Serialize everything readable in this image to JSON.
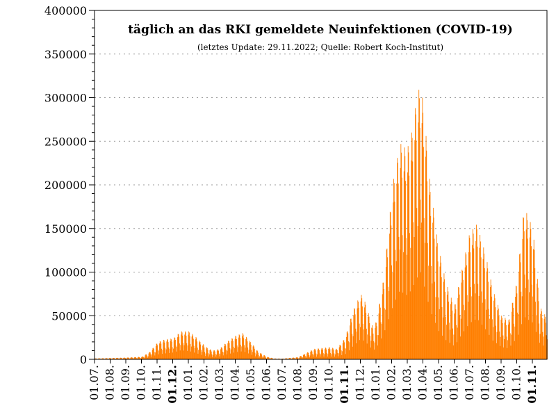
{
  "chart_data": {
    "type": "bar",
    "title": "täglich an das RKI gemeldete Neuinfektionen (COVID-19)",
    "subtitle": "(letztes Update: 29.11.2022; Quelle: Robert Koch-Institut)",
    "xlabel": "",
    "ylabel": "",
    "ylim": [
      0,
      400000
    ],
    "y_ticks": [
      "0",
      "50000",
      "100000",
      "150000",
      "200000",
      "250000",
      "300000",
      "350000",
      "400000"
    ],
    "grid": "horizontal dotted",
    "bar_color": "#ff7f00",
    "x_ticks": [
      "01.07.",
      "01.08.",
      "01.09.",
      "01.10.",
      "01.11.",
      "01.12.",
      "01.01.",
      "01.02.",
      "01.03.",
      "01.04.",
      "01.05.",
      "01.06.",
      "01.07.",
      "01.08.",
      "01.09.",
      "01.10.",
      "01.11.",
      "01.12.",
      "01.01.",
      "01.02.",
      "01.03.",
      "01.04.",
      "01.05.",
      "01.06.",
      "01.07.",
      "01.08.",
      "01.09.",
      "01.10.",
      "01.11."
    ],
    "x_tick_bold": [
      false,
      false,
      false,
      false,
      false,
      true,
      false,
      false,
      false,
      false,
      false,
      false,
      false,
      false,
      false,
      false,
      true,
      false,
      false,
      false,
      false,
      false,
      false,
      false,
      false,
      false,
      false,
      false,
      true
    ],
    "x_range": [
      "2020-07-01",
      "2022-11-29"
    ],
    "weekly_envelope": {
      "x": [
        "2020-07-01",
        "2020-08-01",
        "2020-09-01",
        "2020-10-01",
        "2020-10-15",
        "2020-11-01",
        "2020-11-15",
        "2020-12-01",
        "2020-12-15",
        "2021-01-01",
        "2021-01-15",
        "2021-02-01",
        "2021-02-15",
        "2021-03-01",
        "2021-03-15",
        "2021-04-01",
        "2021-04-15",
        "2021-05-01",
        "2021-05-15",
        "2021-06-01",
        "2021-06-15",
        "2021-07-01",
        "2021-08-01",
        "2021-09-01",
        "2021-10-01",
        "2021-10-15",
        "2021-11-01",
        "2021-11-15",
        "2021-12-01",
        "2021-12-10",
        "2021-12-25",
        "2022-01-01",
        "2022-01-15",
        "2022-02-01",
        "2022-02-15",
        "2022-03-01",
        "2022-03-10",
        "2022-03-20",
        "2022-03-28",
        "2022-04-05",
        "2022-04-15",
        "2022-05-01",
        "2022-05-15",
        "2022-06-01",
        "2022-06-15",
        "2022-07-01",
        "2022-07-15",
        "2022-08-01",
        "2022-08-15",
        "2022-09-01",
        "2022-09-15",
        "2022-10-01",
        "2022-10-15",
        "2022-11-01",
        "2022-11-15",
        "2022-11-29"
      ],
      "peak": [
        1000,
        1500,
        2000,
        3000,
        8000,
        20000,
        23000,
        24000,
        32000,
        32000,
        25000,
        15000,
        10000,
        12000,
        20000,
        27000,
        30000,
        20000,
        9000,
        3000,
        1000,
        800,
        2500,
        12000,
        14000,
        12000,
        25000,
        55000,
        75000,
        65000,
        35000,
        45000,
        95000,
        200000,
        248000,
        240000,
        260000,
        300000,
        318000,
        270000,
        200000,
        130000,
        90000,
        60000,
        100000,
        145000,
        155000,
        120000,
        80000,
        50000,
        45000,
        90000,
        175000,
        150000,
        60000,
        47000
      ],
      "trough": [
        400,
        600,
        900,
        1200,
        3000,
        8000,
        10000,
        12000,
        16000,
        14000,
        10000,
        5000,
        4000,
        5000,
        8000,
        12000,
        14000,
        8000,
        3000,
        1000,
        300,
        300,
        800,
        4000,
        4000,
        4000,
        8000,
        20000,
        35000,
        30000,
        15000,
        20000,
        45000,
        90000,
        120000,
        110000,
        120000,
        140000,
        150000,
        120000,
        80000,
        45000,
        30000,
        20000,
        40000,
        60000,
        70000,
        50000,
        30000,
        20000,
        18000,
        35000,
        70000,
        60000,
        25000,
        20000
      ]
    }
  }
}
